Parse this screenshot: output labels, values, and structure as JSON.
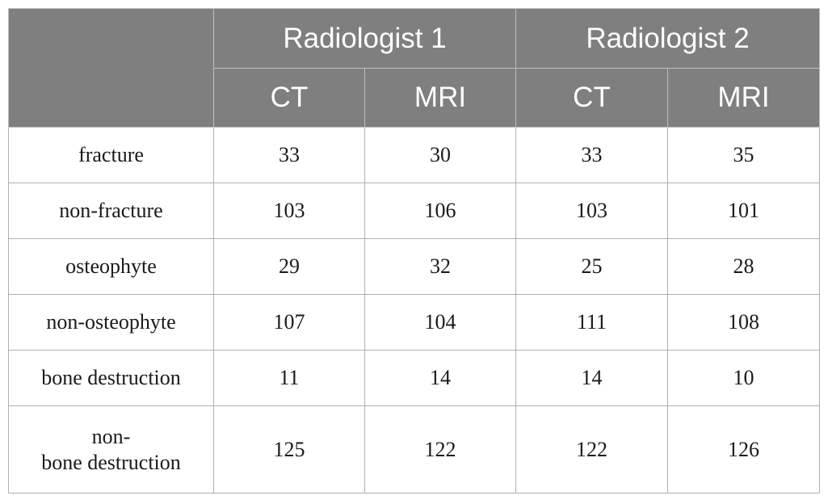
{
  "table": {
    "groups": [
      "Radiologist 1",
      "Radiologist 2"
    ],
    "subheaders": [
      "CT",
      "MRI",
      "CT",
      "MRI"
    ],
    "rows": [
      {
        "label": [
          "fracture"
        ],
        "values": [
          "33",
          "30",
          "33",
          "35"
        ]
      },
      {
        "label": [
          "non-fracture"
        ],
        "values": [
          "103",
          "106",
          "103",
          "101"
        ]
      },
      {
        "label": [
          "osteophyte"
        ],
        "values": [
          "29",
          "32",
          "25",
          "28"
        ]
      },
      {
        "label": [
          "non-osteophyte"
        ],
        "values": [
          "107",
          "104",
          "111",
          "108"
        ]
      },
      {
        "label": [
          "bone destruction"
        ],
        "values": [
          "11",
          "14",
          "14",
          "10"
        ]
      },
      {
        "label": [
          "non-",
          "bone destruction"
        ],
        "values": [
          "125",
          "122",
          "122",
          "126"
        ]
      }
    ]
  }
}
